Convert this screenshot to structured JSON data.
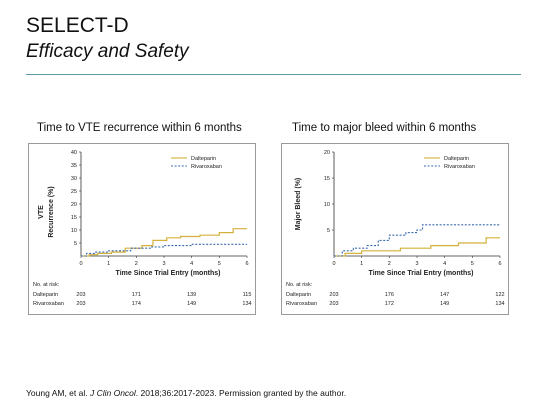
{
  "slide": {
    "title": "SELECT-D",
    "subtitle": "Efficacy and Safety",
    "citation": {
      "authors": "Young AM, et al. ",
      "journal": "J Clin Oncol",
      "rest": ". 2018;36:2017-2023. Permission granted by the author."
    }
  },
  "colors": {
    "dalteparin": "#d4b13a",
    "rivaroxaban": "#3a6ab0",
    "rule": "#5f9aa8"
  },
  "chart_data": [
    {
      "type": "line",
      "title": "Time to VTE recurrence within 6 months",
      "xlabel": "Time Since Trial Entry (months)",
      "ylabel_line1": "VTE",
      "ylabel_line2": "Recurrence (%)",
      "xlim": [
        0,
        6
      ],
      "ylim": [
        0,
        40
      ],
      "xticks": [
        0,
        1,
        2,
        3,
        4,
        5,
        6
      ],
      "yticks": [
        5,
        10,
        15,
        20,
        25,
        30,
        35,
        40
      ],
      "legend_position": "top-right",
      "series": [
        {
          "name": "Dalteparin",
          "style": "solid",
          "x": [
            0,
            0.3,
            0.6,
            1.1,
            1.6,
            2.2,
            2.6,
            3.1,
            3.6,
            4.3,
            5.0,
            5.5,
            6.0
          ],
          "y": [
            0,
            0.5,
            1,
            1.5,
            3,
            4,
            6,
            7,
            7.5,
            8,
            9,
            10.5,
            10.5
          ]
        },
        {
          "name": "Rivaroxaban",
          "style": "dashed",
          "x": [
            0,
            0.2,
            0.5,
            1.0,
            1.8,
            2.5,
            3.0,
            3.5,
            4.0,
            6.0
          ],
          "y": [
            0,
            1,
            1.5,
            2,
            3,
            3.5,
            4,
            4,
            4.5,
            4.5
          ]
        }
      ],
      "risk_table": {
        "header": "No. at risk:",
        "rows": [
          {
            "label": "Dalteparin",
            "values": [
              "203",
              "171",
              "139",
              "115"
            ]
          },
          {
            "label": "Rivaroxaban",
            "values": [
              "203",
              "174",
              "149",
              "134"
            ]
          }
        ]
      }
    },
    {
      "type": "line",
      "title": "Time to major bleed within 6 months",
      "xlabel": "Time Since Trial Entry (months)",
      "ylabel_line1": "Major Bleed (%)",
      "ylabel_line2": "",
      "xlim": [
        0,
        6
      ],
      "ylim": [
        0,
        20
      ],
      "xticks": [
        0,
        1,
        2,
        3,
        4,
        5,
        6
      ],
      "yticks": [
        5,
        10,
        15,
        20
      ],
      "legend_position": "top-right",
      "series": [
        {
          "name": "Dalteparin",
          "style": "solid",
          "x": [
            0,
            0.4,
            1.0,
            2.4,
            3.5,
            4.5,
            5.5,
            6.0
          ],
          "y": [
            0,
            0.5,
            1,
            1.5,
            2,
            2.5,
            3.5,
            3.5
          ]
        },
        {
          "name": "Rivaroxaban",
          "style": "dashed",
          "x": [
            0,
            0.3,
            0.7,
            1.2,
            1.6,
            2.0,
            2.6,
            3.0,
            3.2,
            6.0
          ],
          "y": [
            0,
            1,
            1.5,
            2,
            3,
            4,
            4.5,
            5,
            6,
            6
          ]
        }
      ],
      "risk_table": {
        "header": "No. at risk:",
        "rows": [
          {
            "label": "Dalteparin",
            "values": [
              "203",
              "176",
              "147",
              "122"
            ]
          },
          {
            "label": "Rivaroxaban",
            "values": [
              "203",
              "172",
              "149",
              "134"
            ]
          }
        ]
      }
    }
  ]
}
